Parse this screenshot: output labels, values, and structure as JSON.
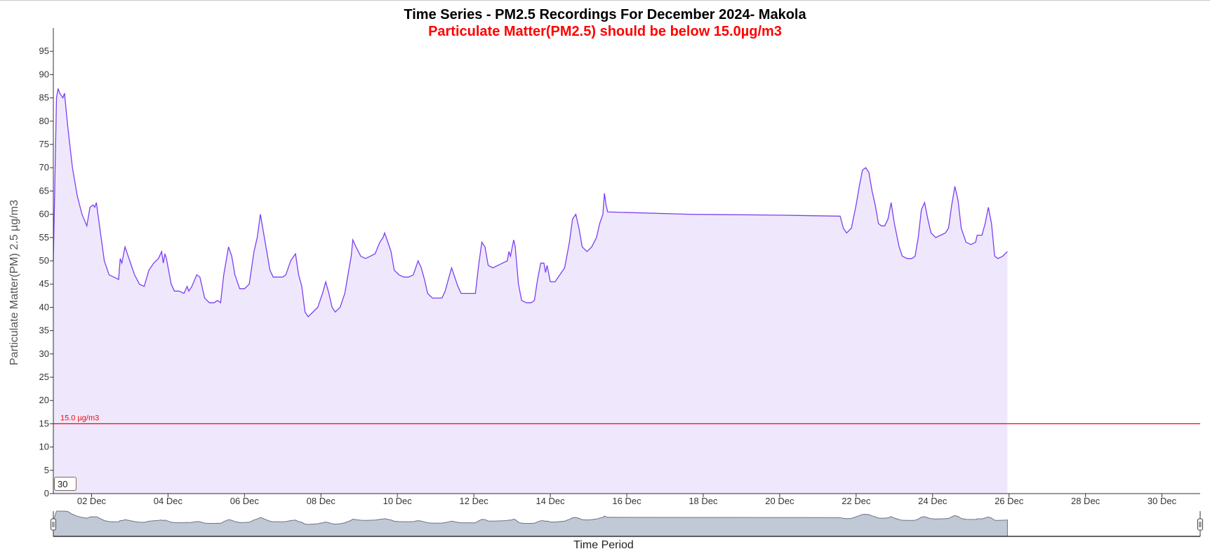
{
  "colors": {
    "line": "#7b3ff2",
    "area": "#efe8fd",
    "reference": "#ff0000",
    "brush_fill": "#c2c9d6",
    "brush_line": "#6a7484"
  },
  "window_input": {
    "value": "30"
  },
  "chart_data": {
    "type": "area",
    "title": "Time Series - PM2.5 Recordings For December 2024- Makola",
    "subtitle": "Particulate Matter(PM2.5) should be below 15.0µg/m3",
    "xlabel": "Time Period",
    "ylabel": "Particulate Matter(PM) 2.5 µg/m3",
    "ylim": [
      0,
      100
    ],
    "yticks": [
      0,
      5,
      10,
      15,
      20,
      25,
      30,
      35,
      40,
      45,
      50,
      55,
      60,
      65,
      70,
      75,
      80,
      85,
      90,
      95
    ],
    "xlim": [
      "2024-12-01",
      "2024-12-31"
    ],
    "xticks": [
      {
        "date": "2024-12-02",
        "label": "02 Dec"
      },
      {
        "date": "2024-12-04",
        "label": "04 Dec"
      },
      {
        "date": "2024-12-06",
        "label": "06 Dec"
      },
      {
        "date": "2024-12-08",
        "label": "08 Dec"
      },
      {
        "date": "2024-12-10",
        "label": "10 Dec"
      },
      {
        "date": "2024-12-12",
        "label": "12 Dec"
      },
      {
        "date": "2024-12-14",
        "label": "14 Dec"
      },
      {
        "date": "2024-12-16",
        "label": "16 Dec"
      },
      {
        "date": "2024-12-18",
        "label": "18 Dec"
      },
      {
        "date": "2024-12-20",
        "label": "20 Dec"
      },
      {
        "date": "2024-12-22",
        "label": "22 Dec"
      },
      {
        "date": "2024-12-24",
        "label": "24 Dec"
      },
      {
        "date": "2024-12-26",
        "label": "26 Dec"
      },
      {
        "date": "2024-12-28",
        "label": "28 Dec"
      },
      {
        "date": "2024-12-30",
        "label": "30 Dec"
      }
    ],
    "grid": false,
    "reference_line": {
      "value": 15,
      "label": "15.0 µg/m3"
    },
    "series": [
      {
        "values": [
          [
            "2024-12-01 00:00",
            50
          ],
          [
            "2024-12-01 02:00",
            85
          ],
          [
            "2024-12-01 03:00",
            87
          ],
          [
            "2024-12-01 04:00",
            86
          ],
          [
            "2024-12-01 06:00",
            85
          ],
          [
            "2024-12-01 07:00",
            86
          ],
          [
            "2024-12-01 09:00",
            79
          ],
          [
            "2024-12-01 12:00",
            70
          ],
          [
            "2024-12-01 15:00",
            64
          ],
          [
            "2024-12-01 18:00",
            60
          ],
          [
            "2024-12-01 21:00",
            57.5
          ],
          [
            "2024-12-01 23:00",
            61.5
          ],
          [
            "2024-12-02 01:00",
            62
          ],
          [
            "2024-12-02 02:00",
            61.5
          ],
          [
            "2024-12-02 03:00",
            62.5
          ],
          [
            "2024-12-02 05:00",
            57.5
          ],
          [
            "2024-12-02 08:00",
            50
          ],
          [
            "2024-12-02 11:00",
            47
          ],
          [
            "2024-12-02 14:00",
            46.5
          ],
          [
            "2024-12-02 17:00",
            46
          ],
          [
            "2024-12-02 18:00",
            50.5
          ],
          [
            "2024-12-02 19:00",
            49.5
          ],
          [
            "2024-12-02 21:00",
            53
          ],
          [
            "2024-12-03 00:00",
            50
          ],
          [
            "2024-12-03 03:00",
            47
          ],
          [
            "2024-12-03 06:00",
            45
          ],
          [
            "2024-12-03 09:00",
            44.5
          ],
          [
            "2024-12-03 12:00",
            48
          ],
          [
            "2024-12-03 15:00",
            49.5
          ],
          [
            "2024-12-03 18:00",
            50.5
          ],
          [
            "2024-12-03 20:00",
            52
          ],
          [
            "2024-12-03 21:00",
            49.5
          ],
          [
            "2024-12-03 22:00",
            51.5
          ],
          [
            "2024-12-03 23:00",
            50.5
          ],
          [
            "2024-12-04 02:00",
            45
          ],
          [
            "2024-12-04 04:00",
            43.5
          ],
          [
            "2024-12-04 07:00",
            43.5
          ],
          [
            "2024-12-04 10:00",
            43
          ],
          [
            "2024-12-04 12:00",
            44.5
          ],
          [
            "2024-12-04 13:00",
            43.5
          ],
          [
            "2024-12-04 15:00",
            44.5
          ],
          [
            "2024-12-04 18:00",
            47
          ],
          [
            "2024-12-04 20:00",
            46.5
          ],
          [
            "2024-12-04 23:00",
            42
          ],
          [
            "2024-12-05 02:00",
            41
          ],
          [
            "2024-12-05 05:00",
            41
          ],
          [
            "2024-12-05 07:00",
            41.5
          ],
          [
            "2024-12-05 09:00",
            41
          ],
          [
            "2024-12-05 11:00",
            47
          ],
          [
            "2024-12-05 14:00",
            53
          ],
          [
            "2024-12-05 16:00",
            51
          ],
          [
            "2024-12-05 18:00",
            47
          ],
          [
            "2024-12-05 21:00",
            44
          ],
          [
            "2024-12-06 00:00",
            44
          ],
          [
            "2024-12-06 03:00",
            45
          ],
          [
            "2024-12-06 06:00",
            52
          ],
          [
            "2024-12-06 08:00",
            55
          ],
          [
            "2024-12-06 10:00",
            60
          ],
          [
            "2024-12-06 13:00",
            54
          ],
          [
            "2024-12-06 16:00",
            48
          ],
          [
            "2024-12-06 18:00",
            46.5
          ],
          [
            "2024-12-06 21:00",
            46.5
          ],
          [
            "2024-12-07 00:00",
            46.5
          ],
          [
            "2024-12-07 02:00",
            47
          ],
          [
            "2024-12-07 05:00",
            50
          ],
          [
            "2024-12-07 08:00",
            51.5
          ],
          [
            "2024-12-07 10:00",
            47
          ],
          [
            "2024-12-07 12:00",
            44.5
          ],
          [
            "2024-12-07 14:00",
            39
          ],
          [
            "2024-12-07 16:00",
            38
          ],
          [
            "2024-12-07 19:00",
            39
          ],
          [
            "2024-12-07 22:00",
            40
          ],
          [
            "2024-12-08 01:00",
            43
          ],
          [
            "2024-12-08 03:00",
            45.5
          ],
          [
            "2024-12-08 05:00",
            43
          ],
          [
            "2024-12-08 07:00",
            40
          ],
          [
            "2024-12-08 09:00",
            39
          ],
          [
            "2024-12-08 12:00",
            40
          ],
          [
            "2024-12-08 15:00",
            43
          ],
          [
            "2024-12-08 17:00",
            47
          ],
          [
            "2024-12-08 19:00",
            51
          ],
          [
            "2024-12-08 20:00",
            54.5
          ],
          [
            "2024-12-08 22:00",
            53
          ],
          [
            "2024-12-09 01:00",
            51
          ],
          [
            "2024-12-09 04:00",
            50.5
          ],
          [
            "2024-12-09 07:00",
            51
          ],
          [
            "2024-12-09 10:00",
            51.5
          ],
          [
            "2024-12-09 13:00",
            54
          ],
          [
            "2024-12-09 15:00",
            55
          ],
          [
            "2024-12-09 16:00",
            56
          ],
          [
            "2024-12-09 18:00",
            54
          ],
          [
            "2024-12-09 20:00",
            52
          ],
          [
            "2024-12-09 22:00",
            48
          ],
          [
            "2024-12-10 01:00",
            47
          ],
          [
            "2024-12-10 04:00",
            46.5
          ],
          [
            "2024-12-10 07:00",
            46.5
          ],
          [
            "2024-12-10 10:00",
            47
          ],
          [
            "2024-12-10 13:00",
            50
          ],
          [
            "2024-12-10 15:00",
            48.5
          ],
          [
            "2024-12-10 17:00",
            46
          ],
          [
            "2024-12-10 19:00",
            43
          ],
          [
            "2024-12-10 22:00",
            42
          ],
          [
            "2024-12-11 01:00",
            42
          ],
          [
            "2024-12-11 04:00",
            42
          ],
          [
            "2024-12-11 06:00",
            43.5
          ],
          [
            "2024-12-11 08:00",
            46
          ],
          [
            "2024-12-11 10:00",
            48.5
          ],
          [
            "2024-12-11 12:00",
            46.5
          ],
          [
            "2024-12-11 14:00",
            44.5
          ],
          [
            "2024-12-11 16:00",
            43
          ],
          [
            "2024-12-11 19:00",
            43
          ],
          [
            "2024-12-11 22:00",
            43
          ],
          [
            "2024-12-12 01:00",
            43
          ],
          [
            "2024-12-12 03:00",
            49
          ],
          [
            "2024-12-12 05:00",
            54
          ],
          [
            "2024-12-12 07:00",
            53
          ],
          [
            "2024-12-12 09:00",
            49
          ],
          [
            "2024-12-12 12:00",
            48.5
          ],
          [
            "2024-12-12 15:00",
            49
          ],
          [
            "2024-12-12 18:00",
            49.5
          ],
          [
            "2024-12-12 21:00",
            50
          ],
          [
            "2024-12-12 22:00",
            52
          ],
          [
            "2024-12-12 23:00",
            51
          ],
          [
            "2024-12-13 01:00",
            54.5
          ],
          [
            "2024-12-13 02:00",
            53
          ],
          [
            "2024-12-13 04:00",
            45
          ],
          [
            "2024-12-13 06:00",
            41.5
          ],
          [
            "2024-12-13 09:00",
            41
          ],
          [
            "2024-12-13 12:00",
            41
          ],
          [
            "2024-12-13 14:00",
            41.5
          ],
          [
            "2024-12-13 16:00",
            46
          ],
          [
            "2024-12-13 18:00",
            49.5
          ],
          [
            "2024-12-13 20:00",
            49.5
          ],
          [
            "2024-12-13 21:00",
            47.5
          ],
          [
            "2024-12-13 22:00",
            49
          ],
          [
            "2024-12-14 00:00",
            45.5
          ],
          [
            "2024-12-14 03:00",
            45.5
          ],
          [
            "2024-12-14 06:00",
            47
          ],
          [
            "2024-12-14 09:00",
            48.5
          ],
          [
            "2024-12-14 12:00",
            54
          ],
          [
            "2024-12-14 14:00",
            59
          ],
          [
            "2024-12-14 16:00",
            60
          ],
          [
            "2024-12-14 18:00",
            57
          ],
          [
            "2024-12-14 20:00",
            53
          ],
          [
            "2024-12-14 23:00",
            52
          ],
          [
            "2024-12-15 02:00",
            53
          ],
          [
            "2024-12-15 05:00",
            55
          ],
          [
            "2024-12-15 07:00",
            58
          ],
          [
            "2024-12-15 09:00",
            60
          ],
          [
            "2024-12-15 10:00",
            64.5
          ],
          [
            "2024-12-15 11:00",
            62
          ],
          [
            "2024-12-15 12:00",
            60.5
          ],
          [
            "2024-12-17 15:00",
            60
          ],
          [
            "2024-12-20 00:00",
            59.8
          ],
          [
            "2024-12-21 14:00",
            59.6
          ],
          [
            "2024-12-21 16:00",
            57
          ],
          [
            "2024-12-21 18:00",
            56
          ],
          [
            "2024-12-21 21:00",
            57
          ],
          [
            "2024-12-22 00:00",
            62
          ],
          [
            "2024-12-22 02:00",
            66
          ],
          [
            "2024-12-22 04:00",
            69.5
          ],
          [
            "2024-12-22 06:00",
            70
          ],
          [
            "2024-12-22 08:00",
            69
          ],
          [
            "2024-12-22 10:00",
            65
          ],
          [
            "2024-12-22 12:00",
            62
          ],
          [
            "2024-12-22 14:00",
            58
          ],
          [
            "2024-12-22 16:00",
            57.5
          ],
          [
            "2024-12-22 18:00",
            57.5
          ],
          [
            "2024-12-22 20:00",
            59
          ],
          [
            "2024-12-22 22:00",
            62.5
          ],
          [
            "2024-12-23 00:00",
            58
          ],
          [
            "2024-12-23 03:00",
            53
          ],
          [
            "2024-12-23 05:00",
            51
          ],
          [
            "2024-12-23 08:00",
            50.5
          ],
          [
            "2024-12-23 11:00",
            50.5
          ],
          [
            "2024-12-23 13:00",
            51
          ],
          [
            "2024-12-23 15:00",
            55
          ],
          [
            "2024-12-23 17:00",
            61
          ],
          [
            "2024-12-23 19:00",
            62.5
          ],
          [
            "2024-12-23 21:00",
            59
          ],
          [
            "2024-12-23 23:00",
            56
          ],
          [
            "2024-12-24 02:00",
            55
          ],
          [
            "2024-12-24 05:00",
            55.5
          ],
          [
            "2024-12-24 08:00",
            56
          ],
          [
            "2024-12-24 10:00",
            57
          ],
          [
            "2024-12-24 12:00",
            62
          ],
          [
            "2024-12-24 14:00",
            66
          ],
          [
            "2024-12-24 16:00",
            63
          ],
          [
            "2024-12-24 18:00",
            57
          ],
          [
            "2024-12-24 21:00",
            54
          ],
          [
            "2024-12-25 00:00",
            53.5
          ],
          [
            "2024-12-25 03:00",
            54
          ],
          [
            "2024-12-25 04:00",
            55.5
          ],
          [
            "2024-12-25 07:00",
            55.5
          ],
          [
            "2024-12-25 09:00",
            58
          ],
          [
            "2024-12-25 11:00",
            61.5
          ],
          [
            "2024-12-25 13:00",
            58
          ],
          [
            "2024-12-25 15:00",
            51
          ],
          [
            "2024-12-25 17:00",
            50.5
          ],
          [
            "2024-12-25 20:00",
            51
          ],
          [
            "2024-12-25 23:00",
            52
          ]
        ]
      }
    ],
    "navigator": {
      "type": "area"
    }
  }
}
